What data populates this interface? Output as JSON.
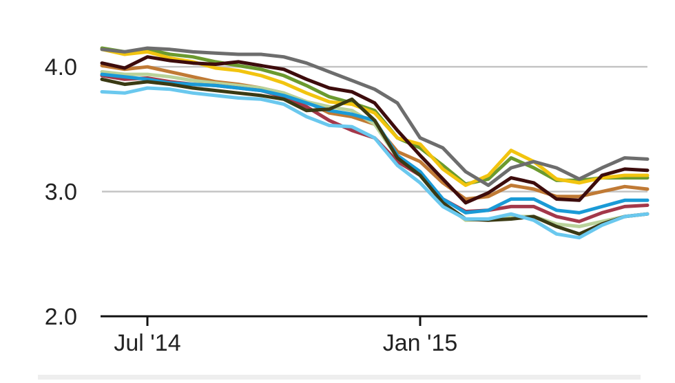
{
  "chart_data": {
    "type": "line",
    "categories": [
      null,
      null,
      "Jul '14",
      null,
      null,
      null,
      null,
      null,
      null,
      null,
      null,
      null,
      null,
      null,
      "Jan '15",
      null,
      null,
      null,
      null,
      null,
      null,
      null,
      null,
      null,
      null
    ],
    "ylim": [
      2,
      4.26
    ],
    "yticks": [
      {
        "value": 2,
        "label": "2.0"
      },
      {
        "value": 3,
        "label": "3.0"
      },
      {
        "value": 4,
        "label": "4.0"
      }
    ],
    "grid": true,
    "series": [
      {
        "color": "#c07a35",
        "values": [
          4.01,
          3.98,
          4.0,
          3.96,
          3.92,
          3.88,
          3.86,
          3.83,
          3.79,
          3.72,
          3.63,
          3.6,
          3.54,
          3.32,
          3.24,
          3.07,
          2.94,
          2.96,
          3.05,
          3.02,
          2.96,
          2.96,
          3.0,
          3.04,
          3.02
        ]
      },
      {
        "color": "#6b9a2f",
        "values": [
          4.15,
          4.12,
          4.14,
          4.1,
          4.08,
          4.04,
          4.01,
          3.98,
          3.93,
          3.85,
          3.76,
          3.71,
          3.65,
          3.43,
          3.35,
          3.21,
          3.06,
          3.1,
          3.27,
          3.19,
          3.09,
          3.09,
          3.11,
          3.11,
          3.11
        ]
      },
      {
        "color": "#f2c40f",
        "values": [
          4.14,
          4.1,
          4.12,
          4.07,
          4.04,
          3.99,
          3.97,
          3.93,
          3.87,
          3.79,
          3.72,
          3.7,
          3.63,
          3.43,
          3.38,
          3.18,
          3.05,
          3.13,
          3.33,
          3.24,
          3.1,
          3.07,
          3.11,
          3.13,
          3.13
        ]
      },
      {
        "color": "#b9d29a",
        "values": [
          3.96,
          3.94,
          3.94,
          3.92,
          3.89,
          3.87,
          3.85,
          3.83,
          3.79,
          3.72,
          3.68,
          3.65,
          3.54,
          3.27,
          3.13,
          2.91,
          2.77,
          2.78,
          2.8,
          2.8,
          2.74,
          2.72,
          2.76,
          2.8,
          2.82
        ]
      },
      {
        "color": "#a3384a",
        "values": [
          3.93,
          3.9,
          3.91,
          3.88,
          3.86,
          3.85,
          3.83,
          3.81,
          3.76,
          3.68,
          3.57,
          3.49,
          3.43,
          3.24,
          3.13,
          2.94,
          2.84,
          2.85,
          2.88,
          2.88,
          2.8,
          2.76,
          2.83,
          2.88,
          2.89
        ]
      },
      {
        "color": "#1a9ad6",
        "values": [
          3.94,
          3.92,
          3.9,
          3.87,
          3.86,
          3.85,
          3.83,
          3.81,
          3.77,
          3.71,
          3.65,
          3.62,
          3.57,
          3.29,
          3.16,
          2.94,
          2.83,
          2.85,
          2.94,
          2.94,
          2.85,
          2.83,
          2.88,
          2.93,
          2.93
        ]
      },
      {
        "color": "#3a3a14",
        "values": [
          3.9,
          3.86,
          3.88,
          3.86,
          3.83,
          3.81,
          3.79,
          3.77,
          3.74,
          3.65,
          3.66,
          3.74,
          3.57,
          3.27,
          3.13,
          2.91,
          2.78,
          2.77,
          2.78,
          2.8,
          2.72,
          2.66,
          2.74,
          2.8,
          2.82
        ]
      },
      {
        "color": "#6ac8ee",
        "values": [
          3.8,
          3.79,
          3.83,
          3.82,
          3.79,
          3.77,
          3.75,
          3.74,
          3.7,
          3.6,
          3.53,
          3.52,
          3.43,
          3.21,
          3.07,
          2.88,
          2.78,
          2.78,
          2.82,
          2.77,
          2.66,
          2.63,
          2.73,
          2.8,
          2.82
        ]
      },
      {
        "color": "#3d0c0c",
        "values": [
          4.03,
          3.99,
          4.08,
          4.05,
          4.03,
          4.02,
          4.04,
          4.01,
          3.98,
          3.9,
          3.83,
          3.8,
          3.71,
          3.49,
          3.29,
          3.1,
          2.91,
          2.99,
          3.11,
          3.07,
          2.94,
          2.93,
          3.13,
          3.18,
          3.17
        ]
      },
      {
        "color": "#6d6d6d",
        "values": [
          4.14,
          4.12,
          4.15,
          4.14,
          4.12,
          4.11,
          4.1,
          4.1,
          4.08,
          4.03,
          3.96,
          3.89,
          3.82,
          3.71,
          3.43,
          3.35,
          3.16,
          3.05,
          3.19,
          3.24,
          3.19,
          3.1,
          3.19,
          3.27,
          3.26
        ]
      }
    ]
  }
}
